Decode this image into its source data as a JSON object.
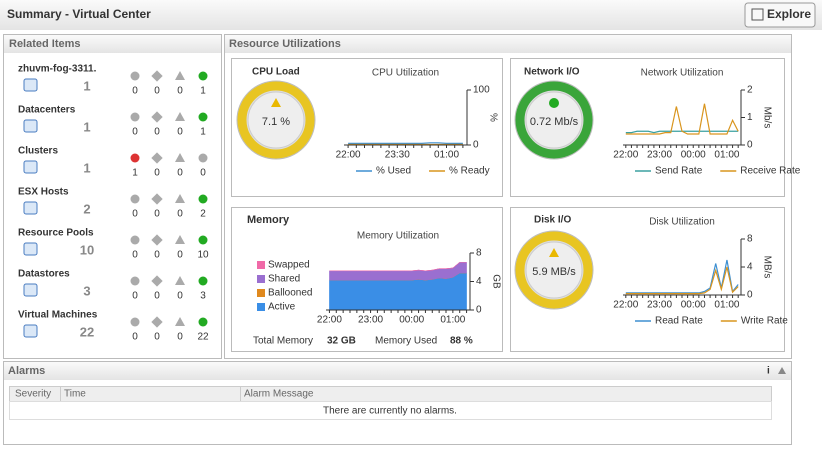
{
  "header": {
    "title": "Summary  -  Virtual Center",
    "button": "Explore"
  },
  "related": {
    "title": "Related Items",
    "items": [
      {
        "name": "zhuvm-fog-3311.",
        "count": 1,
        "states": [
          0,
          0,
          0,
          1
        ]
      },
      {
        "name": "Datacenters",
        "count": 1,
        "states": [
          0,
          0,
          0,
          1
        ]
      },
      {
        "name": "Clusters",
        "count": 1,
        "states": [
          1,
          0,
          0,
          0
        ]
      },
      {
        "name": "ESX Hosts",
        "count": 2,
        "states": [
          0,
          0,
          0,
          2
        ]
      },
      {
        "name": "Resource Pools",
        "count": 10,
        "states": [
          0,
          0,
          0,
          10
        ]
      },
      {
        "name": "Datastores",
        "count": 3,
        "states": [
          0,
          0,
          0,
          3
        ]
      },
      {
        "name": "Virtual Machines",
        "count": 22,
        "states": [
          0,
          0,
          0,
          22
        ]
      }
    ]
  },
  "resource": {
    "title": "Resource Utilizations",
    "cpu": {
      "title": "CPU Load",
      "gauge": "7.1 %",
      "chart": {
        "type": "line",
        "title": "CPU Utilization",
        "y_label": "%",
        "categories": [
          "22:00",
          null,
          null,
          null,
          null,
          null,
          "23:30",
          null,
          null,
          null,
          null,
          null,
          "01:00",
          null,
          null
        ],
        "series": [
          {
            "name": "% Used",
            "color": "#3d8fd1",
            "values": [
              3,
              3,
              3,
              3,
              3,
              3,
              3,
              3,
              3,
              3,
              4,
              4,
              3,
              3,
              3
            ]
          },
          {
            "name": "% Ready",
            "color": "#d9951e",
            "values": [
              1,
              1,
              1,
              1,
              1,
              1,
              1,
              1,
              1,
              1,
              1,
              1,
              1,
              1,
              1
            ]
          }
        ],
        "ylim": [
          0,
          100
        ],
        "yticks": [
          0,
          100
        ]
      }
    },
    "network": {
      "title": "Network I/O",
      "gauge": "0.72 Mb/s",
      "chart": {
        "type": "line",
        "title": "Network Utilization",
        "y_label": "Mb/s",
        "categories": [
          "22:00",
          null,
          null,
          null,
          null,
          null,
          "23:00",
          null,
          null,
          null,
          null,
          null,
          "00:00",
          null,
          null,
          null,
          null,
          null,
          "01:00",
          null,
          null
        ],
        "series": [
          {
            "name": "Send Rate",
            "color": "#3aa0a0",
            "values": [
              0.45,
              0.45,
              0.5,
              0.5,
              0.5,
              0.45,
              0.5,
              0.5,
              0.5,
              0.5,
              0.5,
              0.5,
              0.5,
              0.5,
              0.5,
              0.5,
              0.5,
              0.5,
              0.5,
              0.5,
              0.5
            ]
          },
          {
            "name": "Receive Rate",
            "color": "#d9951e",
            "values": [
              0.4,
              0.4,
              0.4,
              0.4,
              0.4,
              0.4,
              0.4,
              0.45,
              0.45,
              1.4,
              0.5,
              0.4,
              0.4,
              0.4,
              1.5,
              0.4,
              0.4,
              0.4,
              0.4,
              0.9,
              0.5
            ]
          }
        ],
        "ylim": [
          0,
          2
        ],
        "yticks": [
          0,
          1,
          2
        ]
      }
    },
    "memory": {
      "title": "Memory",
      "chart": {
        "type": "area",
        "title": "Memory Utilization",
        "y_label": "GB",
        "categories": [
          "22:00",
          null,
          null,
          null,
          null,
          null,
          "23:00",
          null,
          null,
          null,
          null,
          null,
          "00:00",
          null,
          null,
          null,
          null,
          null,
          "01:00",
          null,
          null
        ],
        "series": [
          {
            "name": "Swapped",
            "color": "#f06aa8",
            "values": [
              0,
              0,
              0,
              0,
              0,
              0,
              0,
              0,
              0,
              0,
              0,
              0,
              0,
              0,
              0,
              0,
              0,
              0,
              0,
              0,
              0
            ]
          },
          {
            "name": "Shared",
            "color": "#9a6fd0",
            "values": [
              1.3,
              1.3,
              1.3,
              1.3,
              1.3,
              1.3,
              1.3,
              1.3,
              1.3,
              1.3,
              1.3,
              1.3,
              1.3,
              1.3,
              1.3,
              1.3,
              1.3,
              1.4,
              1.3,
              1.5,
              1.5
            ]
          },
          {
            "name": "Ballooned",
            "color": "#e0891e",
            "values": [
              0,
              0,
              0,
              0,
              0,
              0,
              0,
              0,
              0,
              0,
              0,
              0,
              0,
              0,
              0,
              0,
              0,
              0,
              0,
              0,
              0
            ]
          },
          {
            "name": "Active",
            "color": "#3a8ee6",
            "values": [
              4.2,
              4.2,
              4.2,
              4.2,
              4.2,
              4.2,
              4.2,
              4.2,
              4.2,
              4.2,
              4.2,
              4.2,
              4.2,
              4.3,
              4.2,
              4.3,
              4.5,
              4.4,
              4.6,
              5.2,
              5.2
            ]
          }
        ],
        "ylim": [
          0,
          8
        ],
        "yticks": [
          0,
          4,
          8
        ]
      },
      "total_label": "Total Memory",
      "total_value": "32 GB",
      "used_label": "Memory Used",
      "used_value": "88 %"
    },
    "disk": {
      "title": "Disk I/O",
      "gauge": "5.9 MB/s",
      "chart": {
        "type": "line",
        "title": "Disk Utilization",
        "y_label": "MB/s",
        "categories": [
          "22:00",
          null,
          null,
          null,
          null,
          null,
          "23:00",
          null,
          null,
          null,
          null,
          null,
          "00:00",
          null,
          null,
          null,
          null,
          null,
          "01:00",
          null,
          null
        ],
        "series": [
          {
            "name": "Read Rate",
            "color": "#3d8fd1",
            "values": [
              0.3,
              0.3,
              0.3,
              0.3,
              0.3,
              0.3,
              0.3,
              0.3,
              0.3,
              0.3,
              0.3,
              0.3,
              0.3,
              0.3,
              0.5,
              1,
              4.5,
              1,
              5,
              0.5,
              1.5
            ]
          },
          {
            "name": "Write Rate",
            "color": "#d9951e",
            "values": [
              0.2,
              0.2,
              0.2,
              0.2,
              0.2,
              0.2,
              0.2,
              0.2,
              0.2,
              0.2,
              0.2,
              0.2,
              0.2,
              0.2,
              0.3,
              0.8,
              3.5,
              0.8,
              4,
              0.4,
              1.2
            ]
          }
        ],
        "ylim": [
          0,
          8
        ],
        "yticks": [
          0,
          4,
          8
        ]
      }
    }
  },
  "alarms": {
    "title": "Alarms",
    "info": "i",
    "columns": [
      "Severity",
      "Time",
      "Alarm Message"
    ],
    "empty": "There are currently no alarms."
  }
}
